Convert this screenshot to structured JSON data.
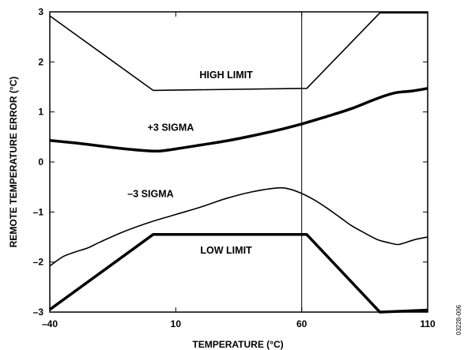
{
  "chart_data": {
    "type": "line",
    "title": "",
    "xlabel": "TEMPERATURE (°C)",
    "ylabel": "REMOTE TEMPERATURE ERROR (°C)",
    "xlim": [
      -40,
      110
    ],
    "ylim": [
      -3,
      3
    ],
    "x_ticks": [
      -40,
      10,
      60,
      110
    ],
    "x_tick_labels": [
      "–40",
      "10",
      "60",
      "110"
    ],
    "y_ticks": [
      -3,
      -2,
      -1,
      0,
      1,
      2,
      3
    ],
    "y_tick_labels": [
      "–3",
      "–2",
      "–1",
      "0",
      "1",
      "2",
      "3"
    ],
    "vertical_reference_lines": [
      60
    ],
    "grid": false,
    "legend": "none",
    "series": [
      {
        "name": "HIGH LIMIT",
        "weight": "thin",
        "x": [
          -40,
          1,
          62,
          91,
          110
        ],
        "y": [
          2.92,
          1.43,
          1.47,
          2.98,
          2.98
        ]
      },
      {
        "name": "+3 SIGMA",
        "weight": "thick",
        "x": [
          -40,
          -30,
          -20,
          -10,
          0,
          4,
          10,
          20,
          30,
          40,
          50,
          60,
          70,
          80,
          90,
          97,
          104,
          110
        ],
        "y": [
          0.43,
          0.38,
          0.32,
          0.26,
          0.22,
          0.22,
          0.26,
          0.34,
          0.42,
          0.52,
          0.63,
          0.76,
          0.91,
          1.07,
          1.27,
          1.38,
          1.42,
          1.47
        ]
      },
      {
        "name": "–3 SIGMA",
        "weight": "thin",
        "x": [
          -40,
          -35,
          -30,
          -25,
          -20,
          -10,
          0,
          10,
          20,
          30,
          40,
          50,
          55,
          60,
          65,
          70,
          75,
          80,
          85,
          90,
          95,
          98,
          100,
          105,
          110
        ],
        "y": [
          -2.08,
          -1.9,
          -1.8,
          -1.72,
          -1.6,
          -1.38,
          -1.2,
          -1.05,
          -0.9,
          -0.73,
          -0.6,
          -0.52,
          -0.54,
          -0.63,
          -0.76,
          -0.92,
          -1.1,
          -1.28,
          -1.42,
          -1.55,
          -1.62,
          -1.65,
          -1.63,
          -1.55,
          -1.5
        ]
      },
      {
        "name": "LOW LIMIT",
        "weight": "thick",
        "x": [
          -40,
          1,
          62,
          91,
          110
        ],
        "y": [
          -2.95,
          -1.45,
          -1.45,
          -3.0,
          -2.96
        ]
      }
    ],
    "annotations": [
      {
        "text": "HIGH LIMIT",
        "x": 30,
        "y": 1.75
      },
      {
        "text": "+3 SIGMA",
        "x": 8,
        "y": 0.7
      },
      {
        "text": "–3 SIGMA",
        "x": 0,
        "y": -0.62
      },
      {
        "text": "LOW LIMIT",
        "x": 30,
        "y": -1.75
      }
    ]
  },
  "figure_id": "03228-006"
}
